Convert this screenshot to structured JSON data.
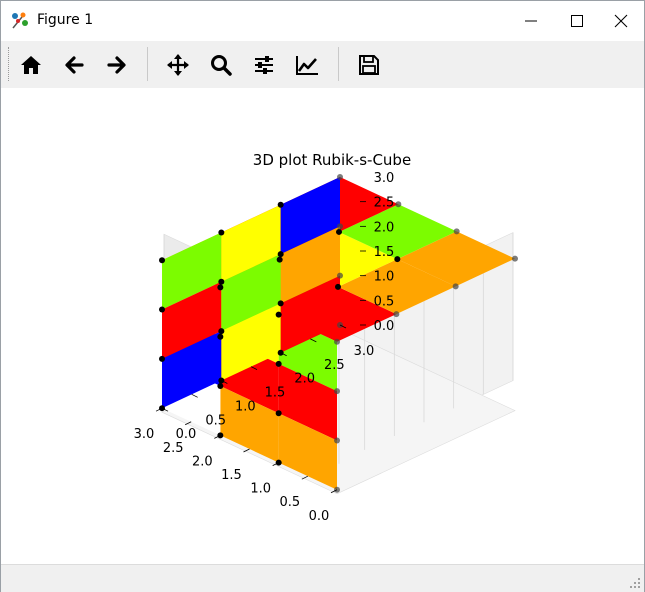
{
  "window": {
    "title": "Figure 1"
  },
  "toolbar": {
    "buttons": [
      {
        "name": "home-icon"
      },
      {
        "name": "back-arrow-icon"
      },
      {
        "name": "forward-arrow-icon"
      },
      {
        "name": "pan-icon"
      },
      {
        "name": "zoom-icon"
      },
      {
        "name": "subplots-config-icon"
      },
      {
        "name": "edit-axes-icon"
      },
      {
        "name": "save-icon"
      }
    ]
  },
  "chart_data": {
    "type": "3d-voxels",
    "title": "3D plot Rubik-s-Cube",
    "x_ticks": [
      "0.0",
      "0.5",
      "1.0",
      "1.5",
      "2.0",
      "2.5",
      "3.0"
    ],
    "y_ticks": [
      "0.0",
      "0.5",
      "1.0",
      "1.5",
      "2.0",
      "2.5",
      "3.0"
    ],
    "z_ticks": [
      "0.0",
      "0.5",
      "1.0",
      "1.5",
      "2.0",
      "2.5",
      "3.0"
    ],
    "xlim": [
      0,
      3
    ],
    "ylim": [
      0,
      3
    ],
    "zlim": [
      0,
      3
    ],
    "grid": true,
    "faces": {
      "top": [
        [
          "red",
          "orange",
          "orange"
        ],
        [
          "lawngreen",
          "yellow",
          "lawngreen"
        ],
        [
          "orange",
          "red",
          "red"
        ]
      ],
      "left": [
        [
          "lawngreen",
          "yellow",
          "white"
        ],
        [
          "red",
          "red",
          "blue"
        ],
        [
          "orange",
          "orange",
          "white"
        ]
      ],
      "right": [
        [
          "lawngreen",
          "yellow",
          "blue"
        ],
        [
          "red",
          "lawngreen",
          "orange"
        ],
        [
          "blue",
          "yellow",
          "red"
        ]
      ]
    },
    "colors": {
      "red": "#ff0000",
      "orange": "#ffa500",
      "lawngreen": "#7cfc00",
      "yellow": "#ffff00",
      "white": "#ffffff",
      "blue": "#0000ff"
    }
  }
}
